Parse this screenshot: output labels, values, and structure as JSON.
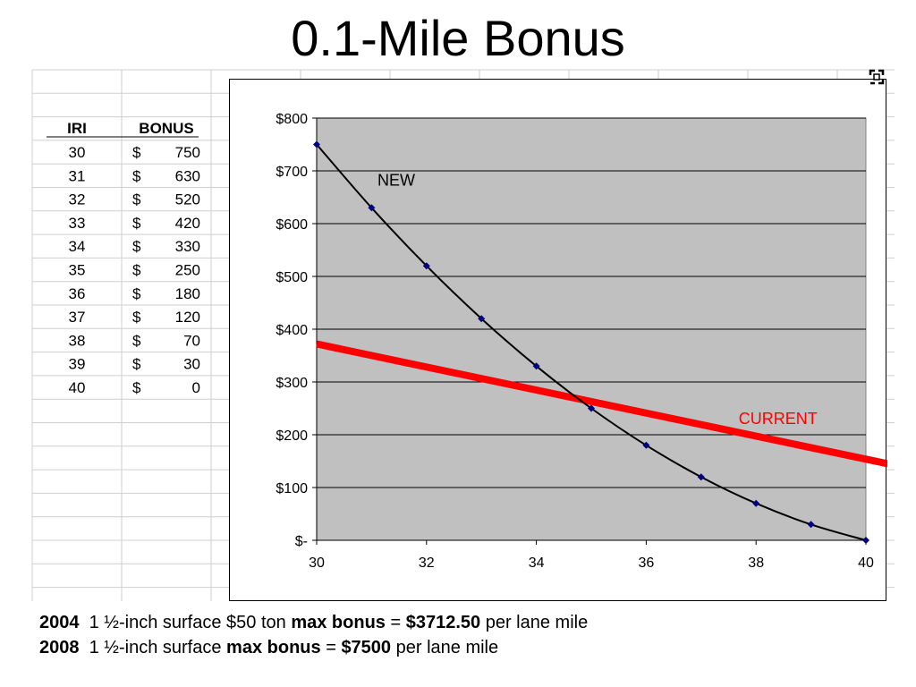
{
  "title": "0.1-Mile Bonus",
  "table": {
    "headers": [
      "IRI",
      "BONUS"
    ],
    "currency_symbol": "$",
    "rows": [
      {
        "iri": "30",
        "bonus": "750"
      },
      {
        "iri": "31",
        "bonus": "630"
      },
      {
        "iri": "32",
        "bonus": "520"
      },
      {
        "iri": "33",
        "bonus": "420"
      },
      {
        "iri": "34",
        "bonus": "330"
      },
      {
        "iri": "35",
        "bonus": "250"
      },
      {
        "iri": "36",
        "bonus": "180"
      },
      {
        "iri": "37",
        "bonus": "120"
      },
      {
        "iri": "38",
        "bonus": "70"
      },
      {
        "iri": "39",
        "bonus": "30"
      },
      {
        "iri": "40",
        "bonus": "0"
      }
    ]
  },
  "chart_data": {
    "type": "line",
    "title": "",
    "xlabel": "",
    "ylabel": "",
    "xlim": [
      30,
      40
    ],
    "ylim": [
      0,
      800
    ],
    "x_ticks": [
      "30",
      "32",
      "34",
      "36",
      "38",
      "40"
    ],
    "y_ticks": [
      "$-",
      "$100",
      "$200",
      "$300",
      "$400",
      "$500",
      "$600",
      "$700",
      "$800"
    ],
    "grid": true,
    "plot_background": "#c0c0c0",
    "series": [
      {
        "name": "NEW",
        "color": "#000000",
        "marker_color": "#000080",
        "x": [
          30,
          31,
          32,
          33,
          34,
          35,
          36,
          37,
          38,
          39,
          40
        ],
        "values": [
          750,
          630,
          520,
          420,
          330,
          250,
          180,
          120,
          70,
          30,
          0
        ]
      },
      {
        "name": "CURRENT",
        "color": "#ff0000",
        "x": [
          30,
          40.4
        ],
        "values": [
          372,
          145
        ]
      }
    ]
  },
  "footer": {
    "line1": {
      "year": "2004",
      "text_a": "1 ½-inch surface $50 ton",
      "bold_a": "max bonus",
      "text_b": "=",
      "bold_b": "$3712.50",
      "text_c": "per lane mile"
    },
    "line2": {
      "year": "2008",
      "text_a": "1 ½-inch surface",
      "bold_a": "max bonus",
      "text_b": "=",
      "bold_b": "$7500",
      "text_c": "per lane mile"
    }
  },
  "icons": {
    "resize": "resize-handle-icon"
  }
}
